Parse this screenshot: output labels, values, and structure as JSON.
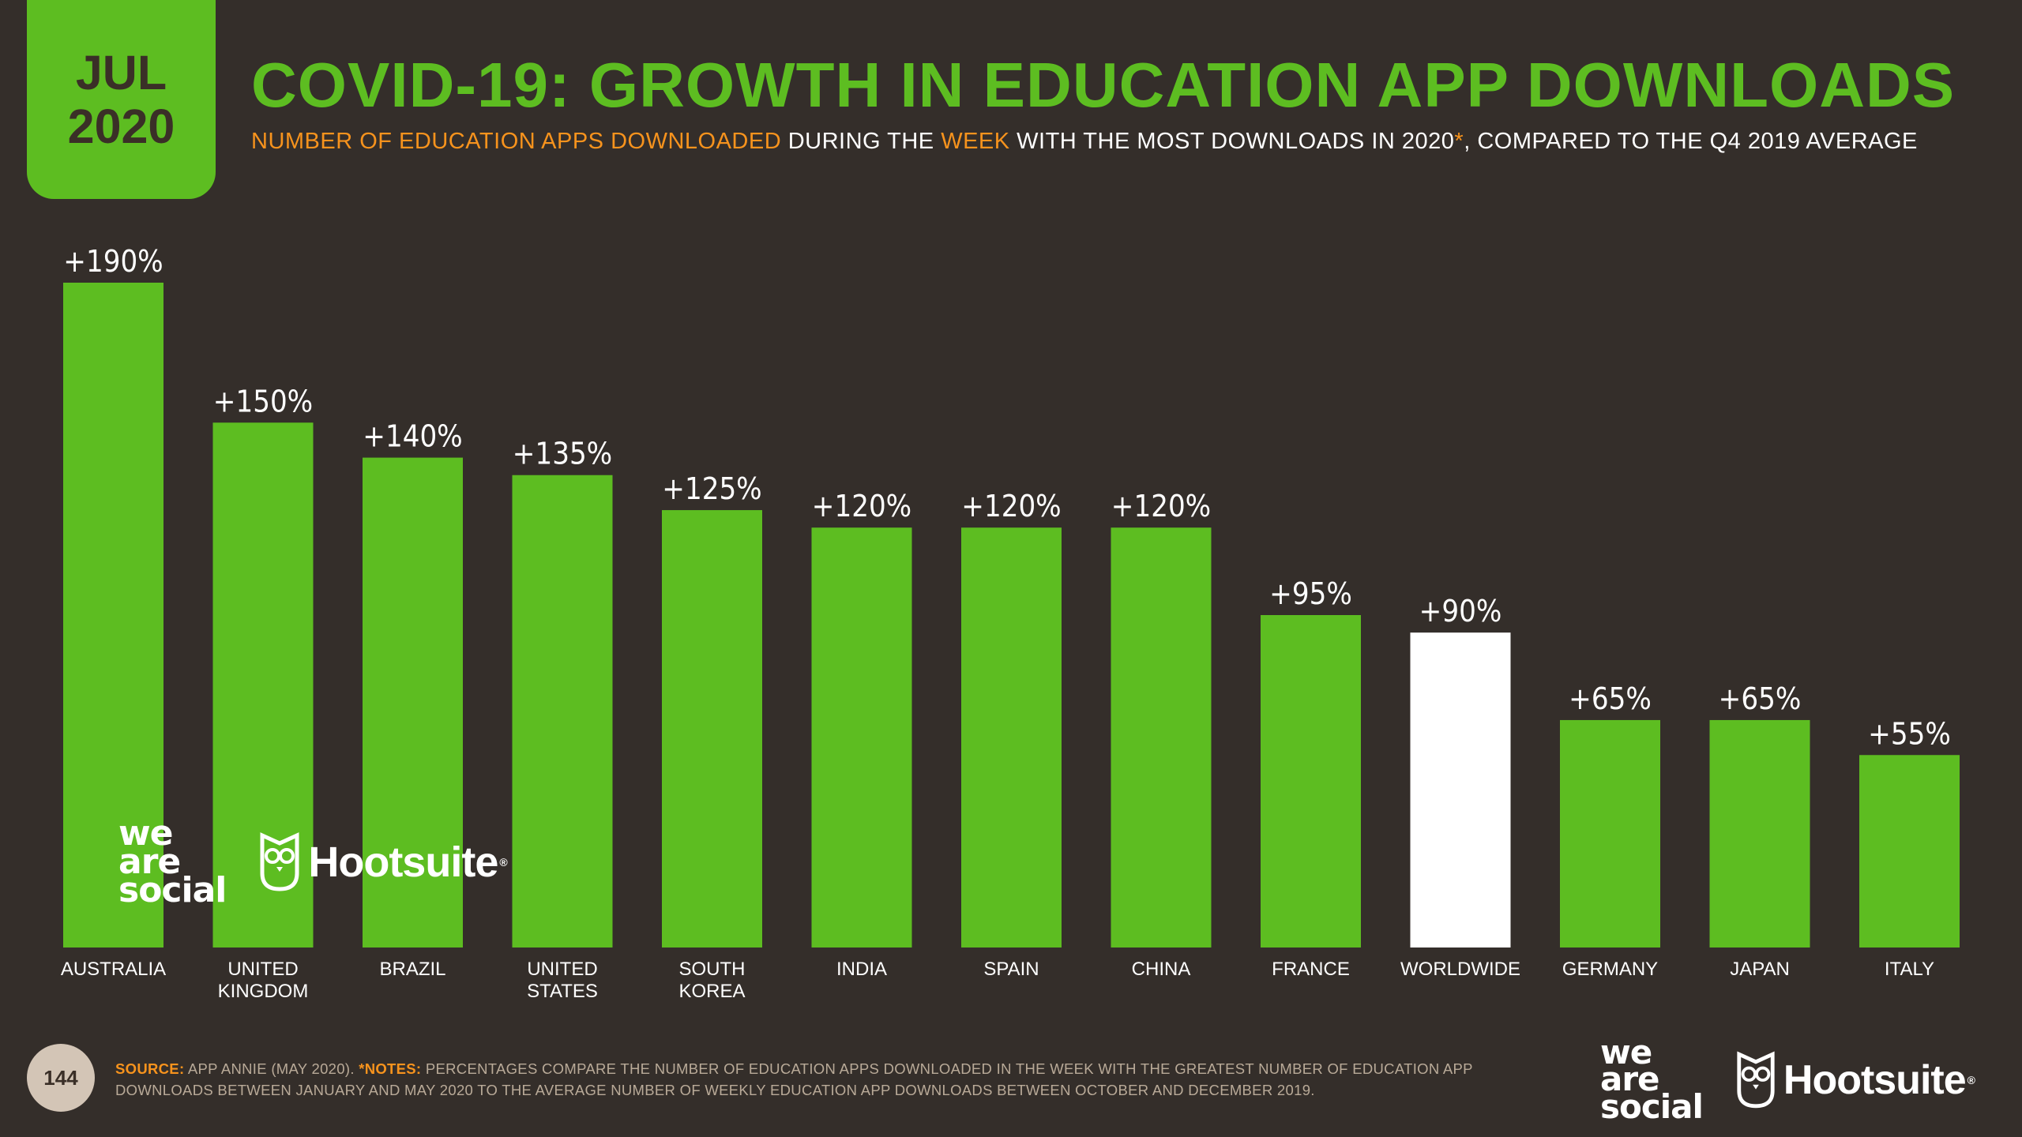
{
  "date_tab": {
    "month": "JUL",
    "year": "2020"
  },
  "title": "COVID-19: GROWTH IN EDUCATION APP DOWNLOADS",
  "subtitle": {
    "part1": "NUMBER OF EDUCATION APPS DOWNLOADED",
    "part2": " DURING THE ",
    "part3": "WEEK",
    "part4": " WITH THE MOST DOWNLOADS IN 2020",
    "part5": "*",
    "part6": ", COMPARED TO THE Q4 2019 AVERAGE"
  },
  "chart_data": {
    "type": "bar",
    "categories": [
      [
        "AUSTRALIA"
      ],
      [
        "UNITED",
        "KINGDOM"
      ],
      [
        "BRAZIL"
      ],
      [
        "UNITED",
        "STATES"
      ],
      [
        "SOUTH",
        "KOREA"
      ],
      [
        "INDIA"
      ],
      [
        "SPAIN"
      ],
      [
        "CHINA"
      ],
      [
        "FRANCE"
      ],
      [
        "WORLDWIDE"
      ],
      [
        "GERMANY"
      ],
      [
        "JAPAN"
      ],
      [
        "ITALY"
      ]
    ],
    "values": [
      190,
      150,
      140,
      135,
      125,
      120,
      120,
      120,
      95,
      90,
      65,
      65,
      55
    ],
    "data_labels": [
      "+190%",
      "+150%",
      "+140%",
      "+135%",
      "+125%",
      "+120%",
      "+120%",
      "+120%",
      "+95%",
      "+90%",
      "+65%",
      "+65%",
      "+55%"
    ],
    "highlight_index": 9,
    "colors": {
      "bar": "#5dbd21",
      "highlight": "#ffffff",
      "label": "#ffffff",
      "background": "#342e2a"
    },
    "ylim": [
      0,
      190
    ],
    "grid": false
  },
  "branding": {
    "was_line1": "we",
    "was_line2": "are",
    "was_line3": "social",
    "hootsuite": "Hootsuite",
    "registered": "®",
    "owl_icon": "owl-icon"
  },
  "footer": {
    "page_number": "144",
    "source_label": "SOURCE:",
    "source_text": " APP ANNIE (MAY 2020). ",
    "notes_label": "*NOTES:",
    "notes_text": " PERCENTAGES COMPARE THE NUMBER OF EDUCATION APPS DOWNLOADED IN THE WEEK WITH THE GREATEST NUMBER OF EDUCATION APP DOWNLOADS BETWEEN JANUARY AND MAY 2020 TO THE AVERAGE NUMBER OF WEEKLY EDUCATION APP DOWNLOADS BETWEEN OCTOBER AND DECEMBER 2019."
  }
}
